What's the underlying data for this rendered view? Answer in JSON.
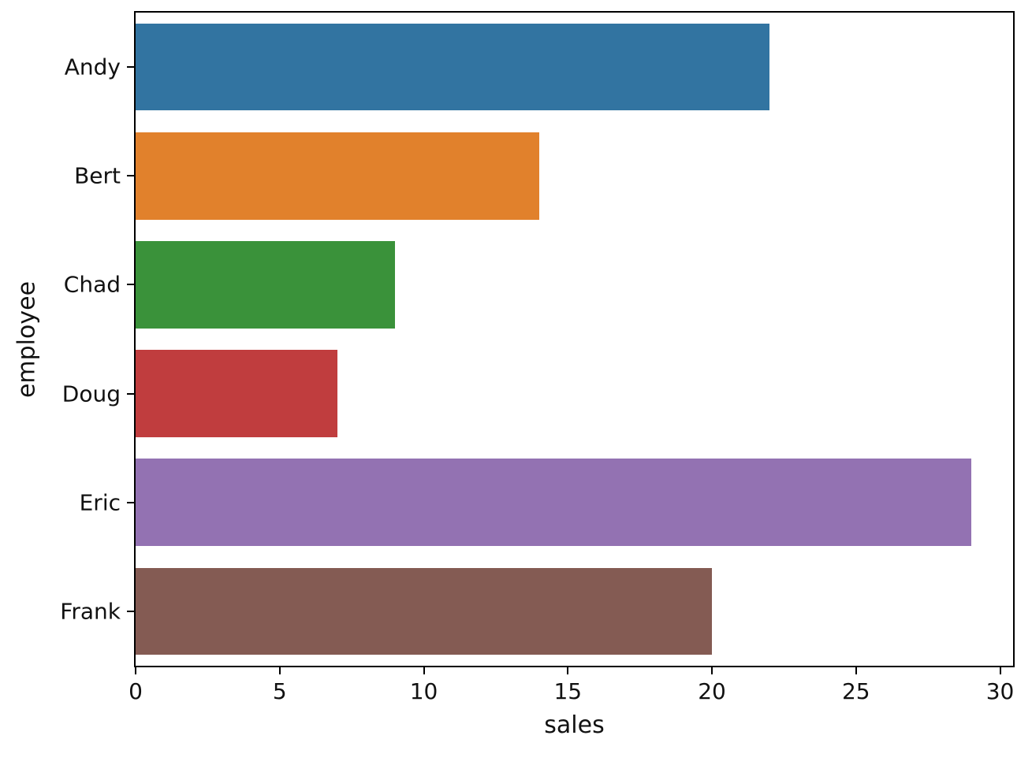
{
  "chart_data": {
    "type": "bar",
    "orientation": "horizontal",
    "title": "",
    "xlabel": "sales",
    "ylabel": "employee",
    "categories": [
      "Andy",
      "Bert",
      "Chad",
      "Doug",
      "Eric",
      "Frank"
    ],
    "values": [
      22,
      14,
      9,
      7,
      29,
      20
    ],
    "bar_colors": [
      "#3274a1",
      "#e1812c",
      "#3a923a",
      "#c03d3e",
      "#9372b2",
      "#845b53"
    ],
    "x_ticks": [
      0,
      5,
      10,
      15,
      20,
      25,
      30
    ],
    "xlim": [
      0,
      30.45
    ],
    "bar_band_fraction": 0.8,
    "grid": false,
    "legend": null,
    "spine_color": "#000000",
    "background_color": "#ffffff"
  }
}
